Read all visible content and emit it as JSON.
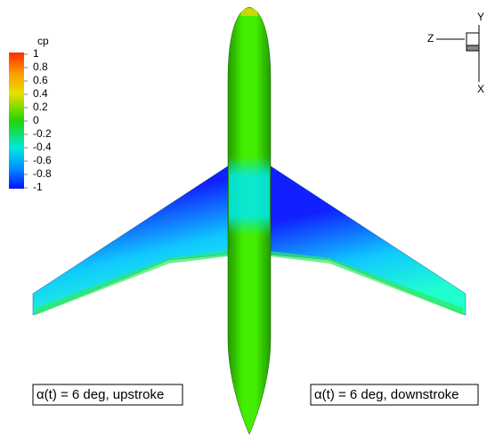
{
  "colorbar": {
    "title": "cp",
    "ticks": [
      1,
      0.8,
      0.6,
      0.4,
      0.2,
      0,
      -0.2,
      -0.4,
      -0.6,
      -0.8,
      -1
    ]
  },
  "labels": {
    "left": "α(t) = 6 deg, upstroke",
    "right": "α(t) = 6 deg, downstroke"
  },
  "axes": {
    "z": "Z",
    "y": "Y",
    "x": "X"
  }
}
